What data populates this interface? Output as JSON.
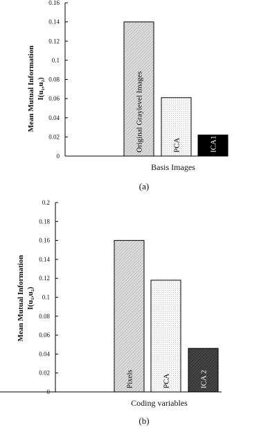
{
  "chart_data": [
    {
      "type": "bar",
      "panel_label": "(a)",
      "categories": [
        "Original Graylevel Images",
        "PCA",
        "ICA1"
      ],
      "values": [
        0.14,
        0.061,
        0.022
      ],
      "xlabel": "Basis Images",
      "ylabel": "Mean Mutual Information",
      "ylabel2": "I(u₁,u₂)",
      "ylim": [
        0,
        0.16
      ],
      "yticks": [
        "0",
        "0.02",
        "0.04",
        "0.06",
        "0.08",
        "0.1",
        "0.12",
        "0.14",
        "0.16"
      ],
      "bar_colors": [
        "#d4d4d4",
        "#f2f2f2",
        "#000000"
      ],
      "label_colors": [
        "#000000",
        "#000000",
        "#ffffff"
      ],
      "grid": false
    },
    {
      "type": "bar",
      "panel_label": "(b)",
      "categories": [
        "Pixels",
        "PCA",
        "ICA 2"
      ],
      "values": [
        0.16,
        0.118,
        0.046
      ],
      "xlabel": "Coding variables",
      "ylabel": "Mean Mutual Information",
      "ylabel2": "I(u₁,u₂)",
      "ylim": [
        0,
        0.2
      ],
      "yticks": [
        "0",
        "0.02",
        "0.04",
        "0.06",
        "0.08",
        "0.1",
        "0.12",
        "0.14",
        "0.16",
        "0.18",
        "0.2"
      ],
      "bar_colors": [
        "#d4d4d4",
        "#f2f2f2",
        "#3a3a3a"
      ],
      "label_colors": [
        "#000000",
        "#000000",
        "#ffffff"
      ],
      "grid": false
    }
  ]
}
